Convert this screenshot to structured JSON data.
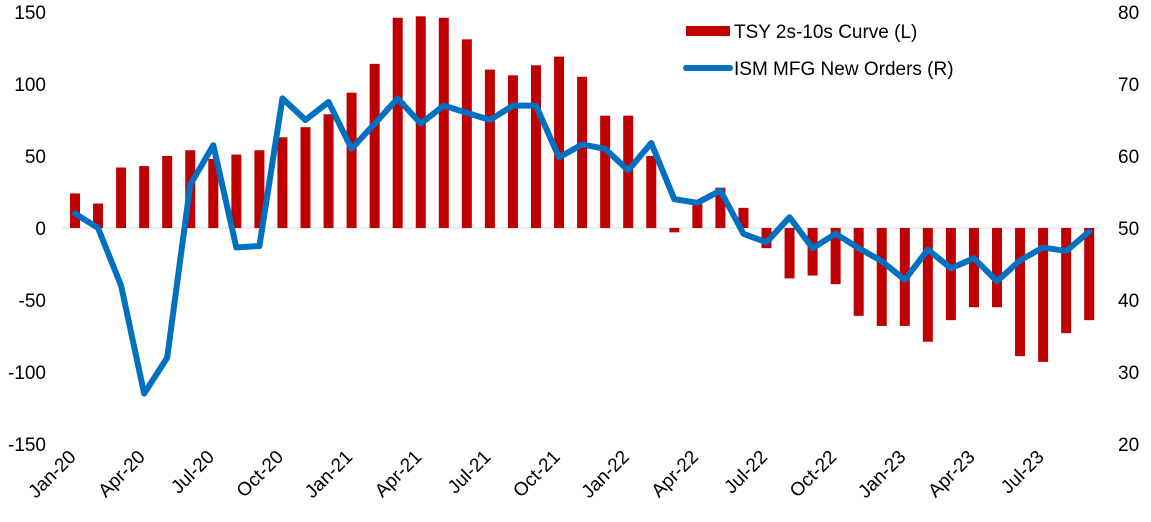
{
  "chart_data": {
    "type": "bar+line",
    "title": "",
    "categories": [
      "Jan-20",
      "Feb-20",
      "Mar-20",
      "Apr-20",
      "May-20",
      "Jun-20",
      "Jul-20",
      "Aug-20",
      "Sep-20",
      "Oct-20",
      "Nov-20",
      "Dec-20",
      "Jan-21",
      "Feb-21",
      "Mar-21",
      "Apr-21",
      "May-21",
      "Jun-21",
      "Jul-21",
      "Aug-21",
      "Sep-21",
      "Oct-21",
      "Nov-21",
      "Dec-21",
      "Jan-22",
      "Feb-22",
      "Mar-22",
      "Apr-22",
      "May-22",
      "Jun-22",
      "Jul-22",
      "Aug-22",
      "Sep-22",
      "Oct-22",
      "Nov-22",
      "Dec-22",
      "Jan-23",
      "Feb-23",
      "Mar-23",
      "Apr-23",
      "May-23",
      "Jun-23",
      "Jul-23",
      "Aug-23",
      "Sep-23"
    ],
    "x_tick_labels": [
      "Jan-20",
      "Apr-20",
      "Jul-20",
      "Oct-20",
      "Jan-21",
      "Apr-21",
      "Jul-21",
      "Oct-21",
      "Jan-22",
      "Apr-22",
      "Jul-22",
      "Oct-22",
      "Jan-23",
      "Apr-23",
      "Jul-23"
    ],
    "series": [
      {
        "name": "TSY 2s-10s Curve (L)",
        "type": "bar",
        "axis": "left",
        "color": "#C00000",
        "values": [
          24,
          17,
          42,
          43,
          50,
          54,
          48,
          51,
          54,
          63,
          70,
          79,
          94,
          114,
          146,
          147,
          146,
          131,
          110,
          106,
          113,
          119,
          105,
          78,
          78,
          50,
          -3,
          18,
          28,
          14,
          -14,
          -35,
          -33,
          -39,
          -61,
          -68,
          -68,
          -79,
          -64,
          -55,
          -55,
          -89,
          -93,
          -73,
          -64
        ]
      },
      {
        "name": "ISM MFG New Orders (R)",
        "type": "line",
        "axis": "right",
        "color": "#0070C0",
        "values": [
          52,
          50,
          42,
          27,
          32,
          56,
          61.5,
          47.3,
          47.5,
          68,
          65,
          67.5,
          61,
          64.5,
          68,
          64.5,
          67,
          66,
          65,
          67,
          67,
          59.8,
          61.6,
          61,
          58,
          61.8,
          54,
          53.5,
          55.2,
          49.2,
          48,
          51.5,
          47.2,
          49.2,
          47.2,
          45.4,
          42.8,
          47,
          44.4,
          45.8,
          42.6,
          45.5,
          47.3,
          46.8,
          49.5
        ]
      }
    ],
    "y_left": {
      "min": -150,
      "max": 150,
      "ticks": [
        "150",
        "100",
        "50",
        "0",
        "-50",
        "-100",
        "-150"
      ]
    },
    "y_right": {
      "min": 20,
      "max": 80,
      "ticks": [
        "80",
        "70",
        "60",
        "50",
        "40",
        "30",
        "20"
      ]
    },
    "legend": {
      "placement": "top-right",
      "bar_label": "TSY 2s-10s Curve (L)",
      "line_label": "ISM MFG New Orders (R)"
    },
    "grid": false
  }
}
